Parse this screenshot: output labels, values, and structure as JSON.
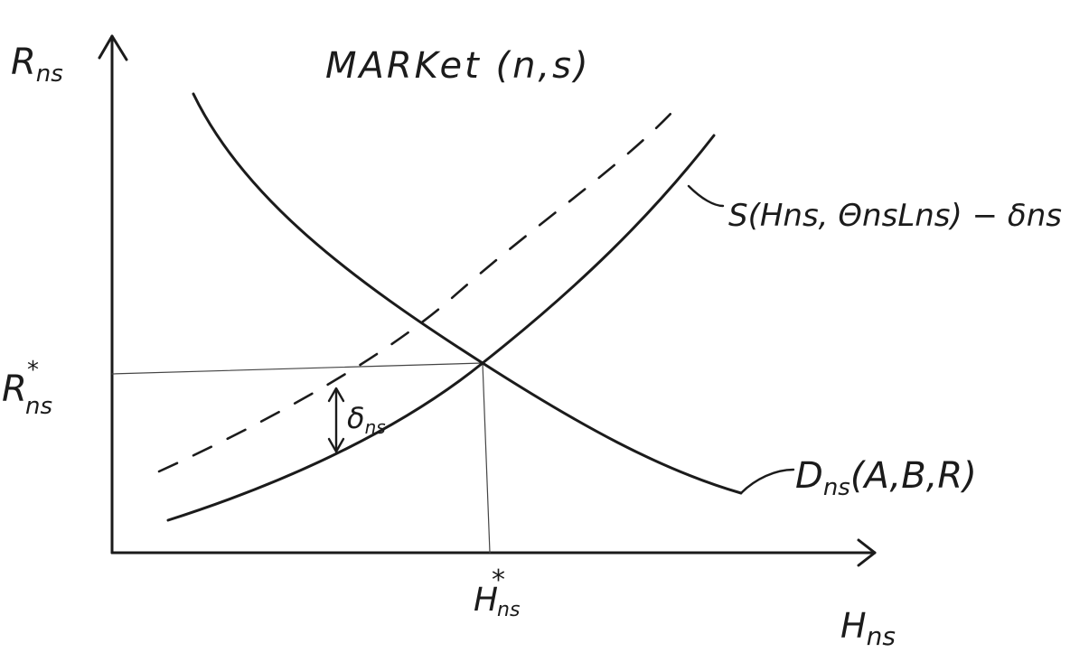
{
  "title": "MARKet (n,s)",
  "y_axis_label": {
    "main": "R",
    "sub": "ns"
  },
  "x_axis_label": {
    "main": "H",
    "sub": "ns"
  },
  "equilibrium": {
    "price_label": {
      "main": "R",
      "sup": "*",
      "sub": "ns"
    },
    "quantity_label": {
      "main": "H",
      "sup": "*",
      "sub": "ns"
    }
  },
  "supply_label": "S(Hns, ΘnsLns) − δns",
  "demand_label": {
    "main": "D",
    "sub": "ns",
    "args": "(A,B,R)"
  },
  "wedge_label": {
    "main": "δ",
    "sub": "ns"
  },
  "ink_color": "#1b1b1b",
  "curves": [
    "supply-curve",
    "shifted-supply-curve-dashed",
    "demand-curve"
  ]
}
